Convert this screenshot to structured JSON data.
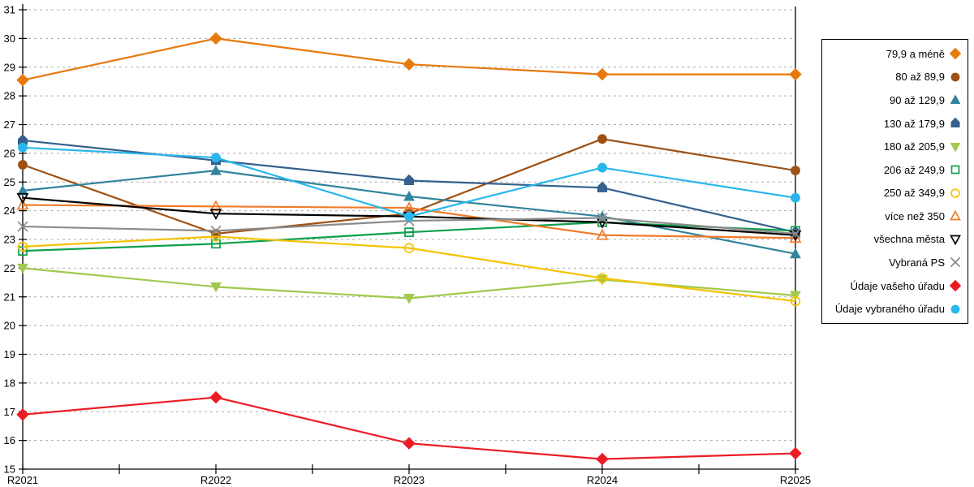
{
  "chart_data": {
    "type": "line",
    "title": "",
    "xlabel": "",
    "ylabel": "",
    "categories": [
      "R2021",
      "R2022",
      "R2023",
      "R2024",
      "R2025"
    ],
    "ylim": [
      15,
      31
    ],
    "ytick_step": 1,
    "grid": "horizontal dashed gridlines at every integer",
    "legend_position": "right",
    "axis_color": "#000000",
    "gridline_color": "#ababab",
    "series": [
      {
        "name": "79,9 a méně",
        "color": "#e8790d",
        "marker": "diamond",
        "open": false,
        "values": [
          28.55,
          30.0,
          29.1,
          28.75,
          28.75
        ]
      },
      {
        "name": "80 až 89,9",
        "color": "#9e5114",
        "marker": "circle",
        "open": false,
        "values": [
          25.6,
          23.2,
          23.9,
          26.5,
          25.4
        ]
      },
      {
        "name": "90 až 129,9",
        "color": "#31849b",
        "marker": "triangle-up",
        "open": false,
        "values": [
          24.7,
          25.4,
          24.5,
          23.8,
          22.5
        ]
      },
      {
        "name": "130 až 179,9",
        "color": "#35618e",
        "marker": "pentagon",
        "open": false,
        "values": [
          26.45,
          25.75,
          25.05,
          24.8,
          23.25
        ]
      },
      {
        "name": "180 až 205,9",
        "color": "#a0c94e",
        "marker": "triangle-down",
        "open": false,
        "values": [
          22.0,
          21.35,
          20.95,
          21.6,
          21.05
        ]
      },
      {
        "name": "206 až 249,9",
        "color": "#0ca04c",
        "marker": "square",
        "open": true,
        "values": [
          22.6,
          22.85,
          23.25,
          23.6,
          23.3
        ]
      },
      {
        "name": "250 až 349,9",
        "color": "#f5c201",
        "marker": "circle",
        "open": true,
        "values": [
          22.75,
          23.1,
          22.7,
          21.65,
          20.85
        ]
      },
      {
        "name": "více než 350",
        "color": "#f07b28",
        "marker": "triangle-up",
        "open": true,
        "values": [
          24.2,
          24.15,
          24.1,
          23.15,
          23.05
        ]
      },
      {
        "name": "všechna města",
        "color": "#000000",
        "marker": "triangle-down",
        "open": true,
        "values": [
          24.45,
          23.9,
          23.8,
          23.6,
          23.15
        ]
      },
      {
        "name": "Vybraná PS",
        "color": "#8c8c8c",
        "marker": "x",
        "open": true,
        "values": [
          23.45,
          23.3,
          23.65,
          23.75,
          23.2
        ]
      },
      {
        "name": "Údaje vašeho úřadu",
        "color": "#ed1c24",
        "marker": "diamond",
        "open": false,
        "values": [
          16.9,
          17.5,
          15.9,
          15.35,
          15.55
        ]
      },
      {
        "name": "Údaje vybraného úřadu",
        "color": "#29b6ec",
        "marker": "circle",
        "open": false,
        "values": [
          26.2,
          25.85,
          23.8,
          25.5,
          24.45
        ]
      }
    ]
  }
}
